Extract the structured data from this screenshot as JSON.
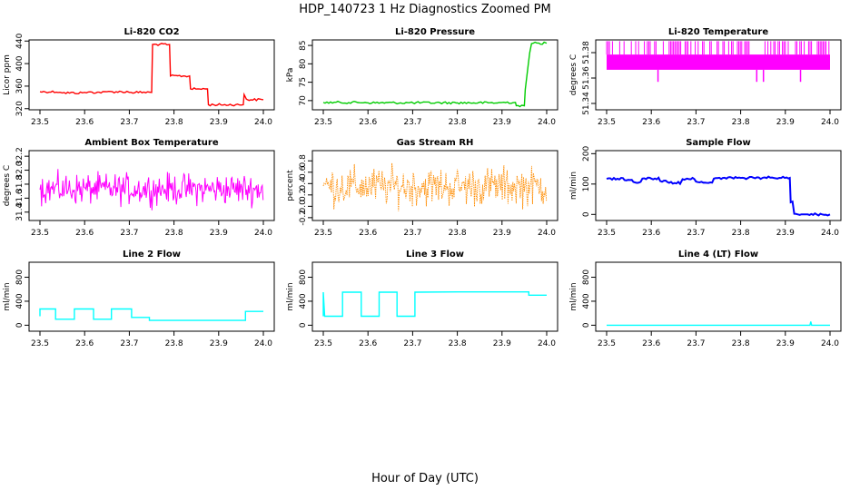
{
  "figure": {
    "title": "HDP_140723  1 Hz Diagnostics Zoomed PM",
    "xlabel": "Hour of Day (UTC)"
  },
  "chart_data": [
    {
      "type": "line",
      "title": "Li-820 CO2",
      "ylabel": "Licor ppm",
      "color": "#ff0000",
      "xlim": [
        23.5,
        24.0
      ],
      "ylim": [
        318,
        442
      ],
      "xticks": [
        "23.5",
        "23.6",
        "23.7",
        "23.8",
        "23.9",
        "24.0"
      ],
      "yticks": [
        "320",
        "360",
        "400",
        "440"
      ],
      "x": [
        23.5,
        23.55,
        23.6,
        23.65,
        23.7,
        23.75,
        23.752,
        23.79,
        23.792,
        23.835,
        23.837,
        23.875,
        23.877,
        23.955,
        23.957,
        23.962,
        23.964,
        24.0
      ],
      "y": [
        350,
        348,
        349,
        350,
        349,
        349,
        434,
        434,
        378,
        378,
        355,
        355,
        327,
        327,
        345,
        337,
        336,
        336
      ]
    },
    {
      "type": "line",
      "title": "Li-820 Pressure",
      "ylabel": "kPa",
      "color": "#00cc00",
      "xlim": [
        23.5,
        24.0
      ],
      "ylim": [
        67.5,
        86.5
      ],
      "xticks": [
        "23.5",
        "23.6",
        "23.7",
        "23.8",
        "23.9",
        "24.0"
      ],
      "yticks": [
        "70",
        "75",
        "80",
        "85"
      ],
      "x": [
        23.5,
        23.6,
        23.7,
        23.8,
        23.9,
        23.93,
        23.932,
        23.95,
        23.952,
        23.958,
        23.962,
        23.966,
        23.97,
        24.0
      ],
      "y": [
        69.5,
        69.4,
        69.4,
        69.4,
        69.5,
        69.5,
        68.6,
        68.6,
        73,
        79,
        83,
        85.5,
        85.6,
        85.6
      ]
    },
    {
      "type": "line",
      "title": "Li-820 Temperature",
      "ylabel": "degrees C",
      "color": "#ff00ff",
      "xlim": [
        23.5,
        24.0
      ],
      "ylim": [
        51.335,
        51.39
      ],
      "xticks": [
        "23.5",
        "23.6",
        "23.7",
        "23.8",
        "23.9",
        "24.0"
      ],
      "yticks": [
        "51.34",
        "51.36",
        "51.38"
      ],
      "band": [
        51.3665,
        51.3785
      ],
      "spike_top": 51.389,
      "x": [
        23.5,
        23.6,
        23.7,
        23.8,
        23.9,
        24.0
      ],
      "y": [
        51.372,
        51.372,
        51.372,
        51.372,
        51.372,
        51.372
      ],
      "low_spikes": [
        {
          "x": 23.615,
          "y": 51.357
        },
        {
          "x": 23.836,
          "y": 51.357
        },
        {
          "x": 23.851,
          "y": 51.357
        },
        {
          "x": 23.934,
          "y": 51.357
        }
      ]
    },
    {
      "type": "line",
      "title": "Ambient Box Temperature",
      "ylabel": "degrees C",
      "color": "#ff00ff",
      "xlim": [
        23.5,
        24.0
      ],
      "ylim": [
        31.28,
        32.28
      ],
      "xticks": [
        "23.5",
        "23.6",
        "23.7",
        "23.8",
        "23.9",
        "24.0"
      ],
      "yticks": [
        "31.4",
        "31.6",
        "31.8",
        "32.0",
        "32.2"
      ],
      "mean": 31.73,
      "noise": 0.32,
      "x": [
        23.5,
        24.0
      ],
      "y": [
        31.73,
        31.73
      ]
    },
    {
      "type": "line",
      "title": "Gas Stream RH",
      "ylabel": "percent",
      "color": "#ff8c00",
      "xlim": [
        23.5,
        24.0
      ],
      "ylim": [
        -0.25,
        0.98
      ],
      "xticks": [
        "23.5",
        "23.6",
        "23.7",
        "23.8",
        "23.9",
        "24.0"
      ],
      "yticks": [
        "-0.2",
        "0.0",
        "0.2",
        "0.4",
        "0.6",
        "0.8"
      ],
      "mean": 0.35,
      "noise": 0.5,
      "x": [
        23.5,
        24.0
      ],
      "y": [
        0.35,
        0.35
      ]
    },
    {
      "type": "line",
      "title": "Sample Flow",
      "ylabel": "ml/min",
      "color": "#0000ff",
      "xlim": [
        23.5,
        24.0
      ],
      "ylim": [
        -20,
        210
      ],
      "xticks": [
        "23.5",
        "23.6",
        "23.7",
        "23.8",
        "23.9",
        "24.0"
      ],
      "yticks": [
        "0",
        "100",
        "200"
      ],
      "x": [
        23.5,
        23.54,
        23.56,
        23.58,
        23.6,
        23.62,
        23.64,
        23.67,
        23.68,
        23.7,
        23.72,
        23.74,
        23.76,
        23.8,
        23.85,
        23.91,
        23.912,
        23.92,
        23.95,
        24.0
      ],
      "y": [
        117,
        113,
        107,
        118,
        118,
        110,
        104,
        116,
        118,
        108,
        105,
        118,
        120,
        120,
        121,
        120,
        40,
        2,
        0,
        0
      ]
    },
    {
      "type": "line",
      "title": "Line 2 Flow",
      "ylabel": "ml/min",
      "color": "#00ffff",
      "xlim": [
        23.5,
        24.0
      ],
      "ylim": [
        -100,
        1050
      ],
      "xticks": [
        "23.5",
        "23.6",
        "23.7",
        "23.8",
        "23.9",
        "24.0"
      ],
      "yticks": [
        "0",
        "400",
        "800"
      ],
      "x": [
        23.5,
        23.5,
        23.535,
        23.535,
        23.577,
        23.577,
        23.62,
        23.62,
        23.66,
        23.66,
        23.705,
        23.705,
        23.745,
        23.745,
        23.96,
        23.96,
        24.0
      ],
      "y": [
        150,
        270,
        270,
        100,
        100,
        270,
        270,
        100,
        100,
        270,
        270,
        130,
        130,
        80,
        80,
        230,
        230
      ]
    },
    {
      "type": "line",
      "title": "Line 3 Flow",
      "ylabel": "ml/min",
      "color": "#00ffff",
      "xlim": [
        23.5,
        24.0
      ],
      "ylim": [
        -100,
        1050
      ],
      "xticks": [
        "23.5",
        "23.6",
        "23.7",
        "23.8",
        "23.9",
        "24.0"
      ],
      "yticks": [
        "0",
        "400",
        "800"
      ],
      "x": [
        23.5,
        23.5,
        23.503,
        23.543,
        23.543,
        23.585,
        23.585,
        23.625,
        23.625,
        23.665,
        23.665,
        23.705,
        23.705,
        23.8,
        23.9,
        23.96,
        23.96,
        24.0
      ],
      "y": [
        150,
        550,
        150,
        150,
        550,
        550,
        150,
        150,
        550,
        550,
        150,
        150,
        550,
        555,
        555,
        555,
        500,
        500
      ]
    },
    {
      "type": "line",
      "title": "Line 4 (LT) Flow",
      "ylabel": "ml/min",
      "color": "#00ffff",
      "xlim": [
        23.5,
        24.0
      ],
      "ylim": [
        -100,
        1050
      ],
      "xticks": [
        "23.5",
        "23.6",
        "23.7",
        "23.8",
        "23.9",
        "24.0"
      ],
      "yticks": [
        "0",
        "400",
        "800"
      ],
      "x": [
        23.5,
        23.955,
        23.957,
        23.959,
        23.961,
        24.0
      ],
      "y": [
        0,
        0,
        60,
        0,
        0,
        0
      ]
    }
  ]
}
